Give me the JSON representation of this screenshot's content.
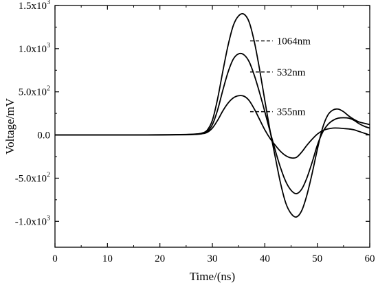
{
  "chart_data": {
    "type": "line",
    "xlabel": "Time/(ns)",
    "ylabel": "Voltage/mV",
    "xlim": [
      0,
      60
    ],
    "ylim": [
      -1300,
      1500
    ],
    "grid": false,
    "legend": "none",
    "x_ticks": [
      {
        "value": 0,
        "label": "0"
      },
      {
        "value": 10,
        "label": "10"
      },
      {
        "value": 20,
        "label": "20"
      },
      {
        "value": 30,
        "label": "30"
      },
      {
        "value": 40,
        "label": "40"
      },
      {
        "value": 50,
        "label": "50"
      },
      {
        "value": 60,
        "label": "60"
      }
    ],
    "y_ticks": [
      {
        "value": -1000,
        "base": "-1.0x10",
        "exp": "3"
      },
      {
        "value": -500,
        "base": "-5.0x10",
        "exp": "2"
      },
      {
        "value": 0,
        "base": "0.0",
        "exp": ""
      },
      {
        "value": 500,
        "base": "5.0x10",
        "exp": "2"
      },
      {
        "value": 1000,
        "base": "1.0x10",
        "exp": "3"
      },
      {
        "value": 1500,
        "base": "1.5x10",
        "exp": "3"
      }
    ],
    "x": [
      0,
      5,
      10,
      15,
      20,
      25,
      27,
      28,
      29,
      30,
      31,
      32,
      33,
      34,
      35,
      36,
      37,
      38,
      39,
      40,
      41,
      42,
      43,
      44,
      45,
      46,
      47,
      48,
      49,
      50,
      51,
      52,
      53,
      54,
      55,
      56,
      57,
      58,
      59,
      60
    ],
    "series": [
      {
        "values": [
          0,
          0,
          0,
          0,
          2,
          6,
          12,
          22,
          55,
          170,
          420,
          740,
          1040,
          1270,
          1380,
          1400,
          1310,
          1080,
          760,
          400,
          50,
          -260,
          -560,
          -790,
          -910,
          -950,
          -880,
          -700,
          -450,
          -170,
          80,
          230,
          290,
          300,
          270,
          220,
          180,
          150,
          135,
          120
        ]
      },
      {
        "values": [
          0,
          0,
          0,
          0,
          2,
          5,
          10,
          18,
          40,
          120,
          290,
          520,
          730,
          880,
          940,
          930,
          850,
          690,
          490,
          270,
          40,
          -180,
          -380,
          -540,
          -640,
          -680,
          -630,
          -500,
          -320,
          -120,
          30,
          120,
          170,
          195,
          200,
          195,
          170,
          130,
          100,
          80
        ]
      },
      {
        "values": [
          0,
          0,
          0,
          0,
          1,
          3,
          7,
          14,
          30,
          80,
          170,
          280,
          370,
          430,
          455,
          450,
          400,
          300,
          180,
          60,
          -40,
          -120,
          -190,
          -240,
          -265,
          -260,
          -200,
          -120,
          -50,
          10,
          50,
          70,
          80,
          80,
          75,
          70,
          60,
          40,
          20,
          0
        ]
      }
    ],
    "annotations": [
      {
        "label": "1064nm",
        "x_start": 37.2,
        "x_end": 41.5,
        "y": 1090
      },
      {
        "label": "532nm",
        "x_start": 37.2,
        "x_end": 41.5,
        "y": 730
      },
      {
        "label": "355nm",
        "x_start": 37.2,
        "x_end": 41.5,
        "y": 270
      }
    ]
  }
}
